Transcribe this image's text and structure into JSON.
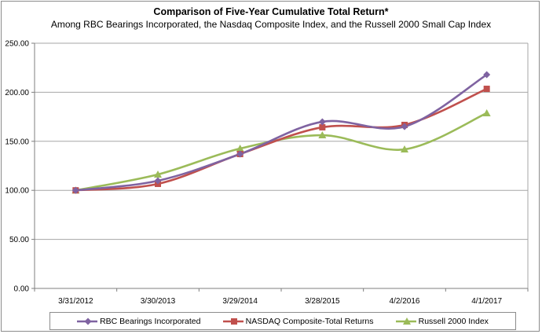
{
  "chart_data": {
    "type": "line",
    "title": "Comparison of Five-Year Cumulative Total Return*",
    "subtitle": "Among RBC Bearings Incorporated, the Nasdaq Composite Index, and the Russell 2000 Small Cap Index",
    "xlabel": "",
    "ylabel": "",
    "categories": [
      "3/31/2012",
      "3/30/2013",
      "3/29/2014",
      "3/28/2015",
      "4/2/2016",
      "4/1/2017"
    ],
    "ylim": [
      0,
      250
    ],
    "yticks": [
      "0.00",
      "50.00",
      "100.00",
      "150.00",
      "200.00",
      "250.00"
    ],
    "ytick_values": [
      0,
      50,
      100,
      150,
      200,
      250
    ],
    "grid": true,
    "legend_position": "bottom",
    "series": [
      {
        "name": "RBC Bearings Incorporated",
        "color": "#7F63A1",
        "marker": "diamond",
        "values": [
          100.0,
          109.8,
          137.0,
          169.9,
          165.0,
          217.9
        ]
      },
      {
        "name": "NASDAQ Composite-Total Returns",
        "color": "#C0504D",
        "marker": "square",
        "values": [
          100.0,
          106.6,
          137.0,
          164.3,
          166.7,
          203.5
        ]
      },
      {
        "name": "Russell 2000 Index",
        "color": "#9BBB59",
        "marker": "triangle",
        "values": [
          100.0,
          116.2,
          142.6,
          156.2,
          141.8,
          178.7
        ]
      }
    ]
  }
}
